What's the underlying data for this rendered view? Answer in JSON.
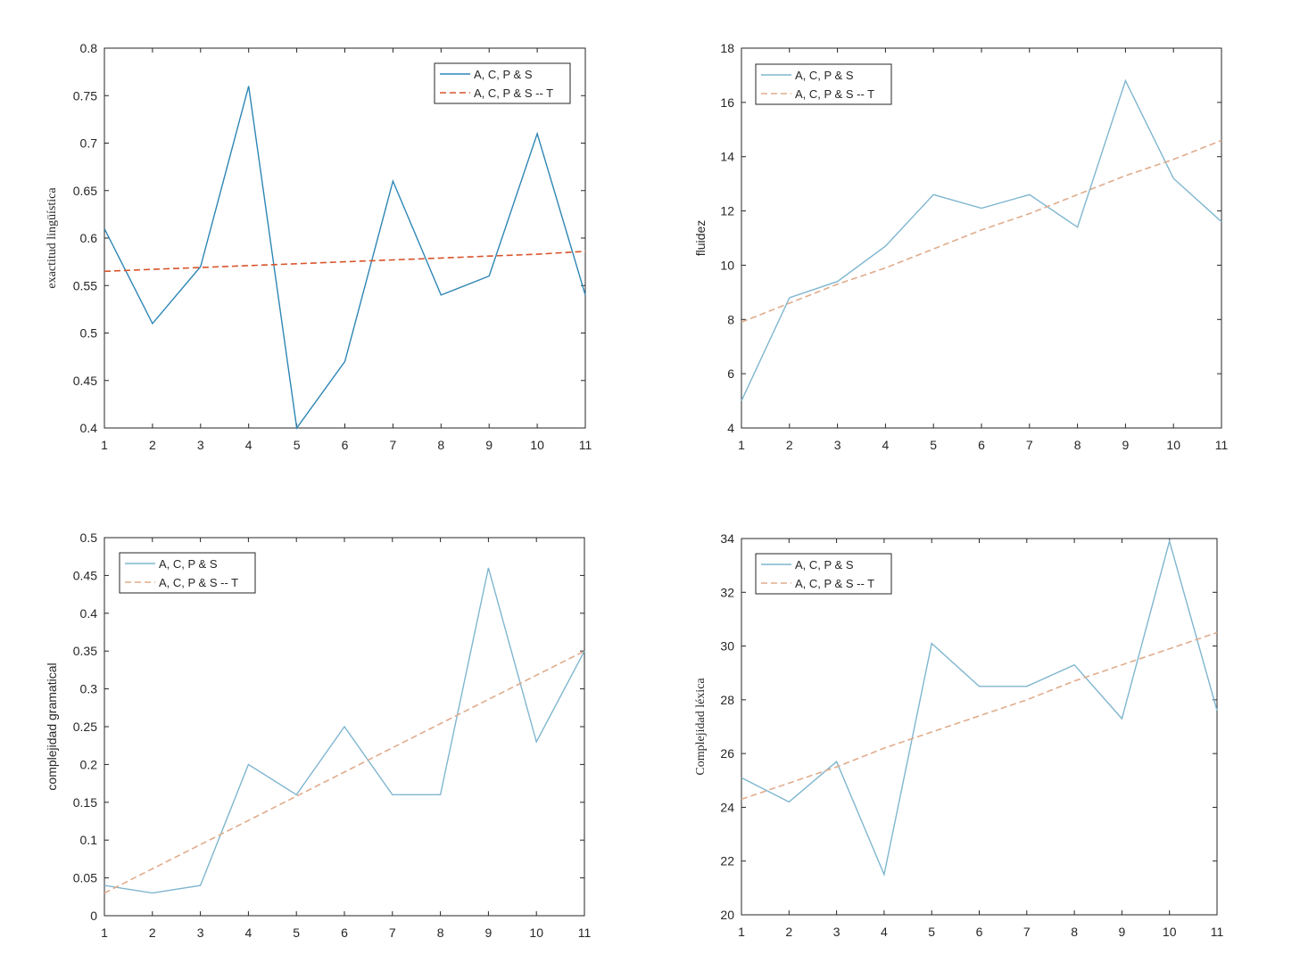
{
  "chart_data": [
    {
      "type": "line",
      "ylabel": "exactitud lingüística",
      "xlabel": "",
      "x": [
        1,
        2,
        3,
        4,
        5,
        6,
        7,
        8,
        9,
        10,
        11
      ],
      "xlim": [
        1,
        11
      ],
      "ylim": [
        0.4,
        0.8
      ],
      "xticks": [
        "1",
        "2",
        "3",
        "4",
        "5",
        "6",
        "7",
        "8",
        "9",
        "10",
        "11"
      ],
      "yticks": [
        "0.4",
        "0.45",
        "0.5",
        "0.55",
        "0.6",
        "0.65",
        "0.7",
        "0.75",
        "0.8"
      ],
      "legend_position": "top-right",
      "series": [
        {
          "name": "A, C, P & S",
          "style": "solid",
          "color": "#2e86b5",
          "values": [
            0.61,
            0.51,
            0.57,
            0.76,
            0.4,
            0.47,
            0.66,
            0.54,
            0.56,
            0.71,
            0.54
          ]
        },
        {
          "name": "A, C, P & S -- T",
          "style": "dashed",
          "color": "#d9542b",
          "values": [
            0.565,
            0.567,
            0.569,
            0.571,
            0.573,
            0.575,
            0.577,
            0.579,
            0.581,
            0.583,
            0.586
          ]
        }
      ]
    },
    {
      "type": "line",
      "ylabel": "fluidez",
      "xlabel": "",
      "x": [
        1,
        2,
        3,
        4,
        5,
        6,
        7,
        8,
        9,
        10,
        11
      ],
      "xlim": [
        1,
        11
      ],
      "ylim": [
        4,
        18
      ],
      "xticks": [
        "1",
        "2",
        "3",
        "4",
        "5",
        "6",
        "7",
        "8",
        "9",
        "10",
        "11"
      ],
      "yticks": [
        "4",
        "6",
        "8",
        "10",
        "12",
        "14",
        "16",
        "18"
      ],
      "legend_position": "top-left",
      "series": [
        {
          "name": "A, C, P & S",
          "style": "solid",
          "color": "#7fb6cf",
          "values": [
            5.0,
            8.8,
            9.4,
            10.7,
            12.6,
            12.1,
            12.6,
            11.4,
            16.8,
            13.2,
            11.6
          ]
        },
        {
          "name": "A, C, P & S -- T",
          "style": "dashed",
          "color": "#e0ac8c",
          "values": [
            7.9,
            8.6,
            9.3,
            9.9,
            10.6,
            11.3,
            11.9,
            12.6,
            13.3,
            13.9,
            14.6
          ]
        }
      ]
    },
    {
      "type": "line",
      "ylabel": "complejidad gramatical",
      "xlabel": "",
      "x": [
        1,
        2,
        3,
        4,
        5,
        6,
        7,
        8,
        9,
        10,
        11
      ],
      "xlim": [
        1,
        11
      ],
      "ylim": [
        0,
        0.5
      ],
      "xticks": [
        "1",
        "2",
        "3",
        "4",
        "5",
        "6",
        "7",
        "8",
        "9",
        "10",
        "11"
      ],
      "yticks": [
        "0",
        "0.05",
        "0.1",
        "0.15",
        "0.2",
        "0.25",
        "0.3",
        "0.35",
        "0.4",
        "0.45",
        "0.5"
      ],
      "legend_position": "top-left",
      "series": [
        {
          "name": "A, C, P & S",
          "style": "solid",
          "color": "#7fb6cf",
          "values": [
            0.04,
            0.03,
            0.04,
            0.2,
            0.16,
            0.25,
            0.16,
            0.16,
            0.46,
            0.23,
            0.35
          ]
        },
        {
          "name": "A, C, P & S -- T",
          "style": "dashed",
          "color": "#e0ac8c",
          "values": [
            0.03,
            0.062,
            0.094,
            0.126,
            0.158,
            0.19,
            0.222,
            0.254,
            0.286,
            0.318,
            0.35
          ]
        }
      ]
    },
    {
      "type": "line",
      "ylabel": "Complejidad léxica",
      "xlabel": "",
      "x": [
        1,
        2,
        3,
        4,
        5,
        6,
        7,
        8,
        9,
        10,
        11
      ],
      "xlim": [
        1,
        11
      ],
      "ylim": [
        20,
        34
      ],
      "xticks": [
        "1",
        "2",
        "3",
        "4",
        "5",
        "6",
        "7",
        "8",
        "9",
        "10",
        "11"
      ],
      "yticks": [
        "20",
        "22",
        "24",
        "26",
        "28",
        "30",
        "32",
        "34"
      ],
      "legend_position": "top-left",
      "series": [
        {
          "name": "A, C, P & S",
          "style": "solid",
          "color": "#7fb6cf",
          "values": [
            25.1,
            24.2,
            25.7,
            21.5,
            30.1,
            28.5,
            28.5,
            29.3,
            27.3,
            33.9,
            27.6
          ]
        },
        {
          "name": "A, C, P & S -- T",
          "style": "dashed",
          "color": "#e0ac8c",
          "values": [
            24.3,
            24.9,
            25.5,
            26.2,
            26.8,
            27.4,
            28.0,
            28.7,
            29.3,
            29.9,
            30.5
          ]
        }
      ]
    }
  ]
}
